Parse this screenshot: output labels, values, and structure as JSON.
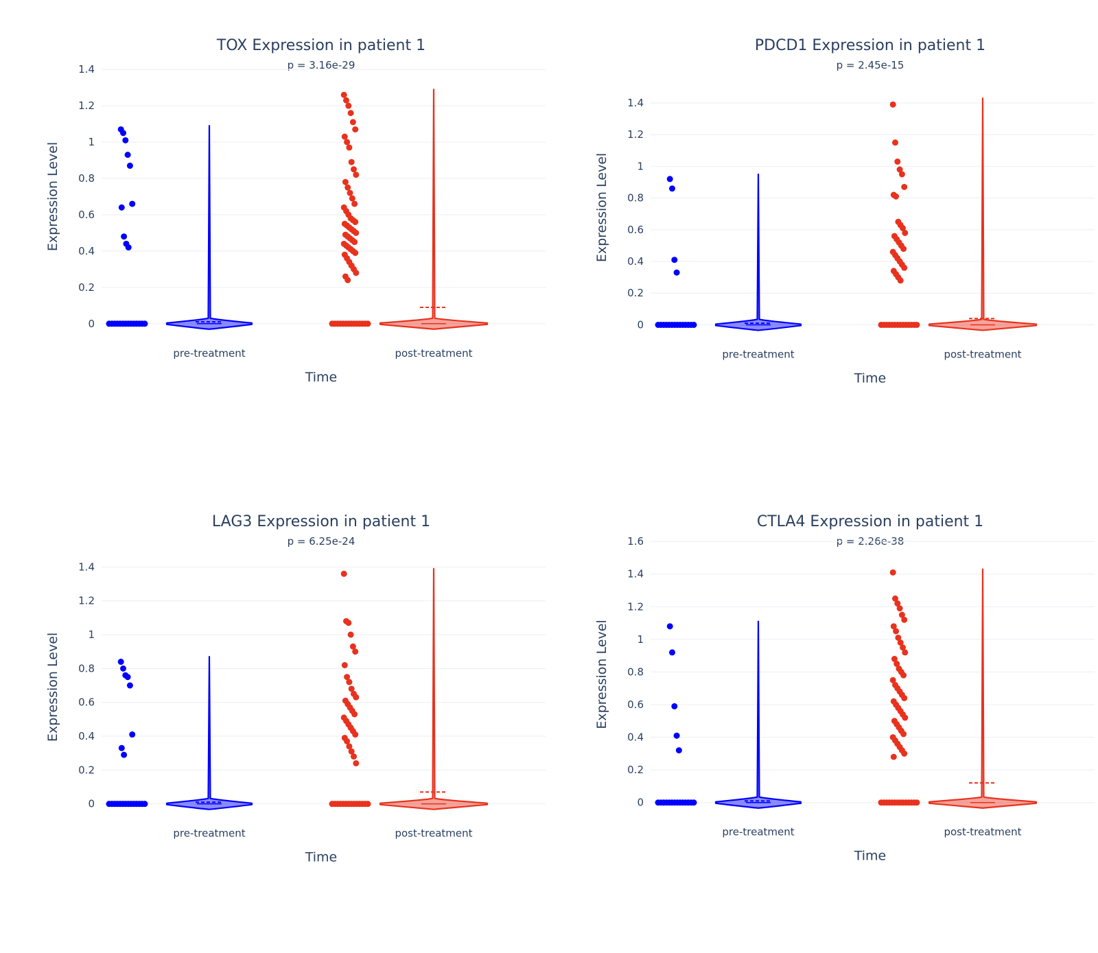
{
  "chart_data": [
    {
      "type": "violin",
      "title": "TOX Expression in patient 1",
      "subtitle": "p = 3.16e-29",
      "xlabel": "Time",
      "ylabel": "Expression Level",
      "categories": [
        "pre-treatment",
        "post-treatment"
      ],
      "ylim": [
        -0.05,
        1.45
      ],
      "yticks": [
        0,
        0.2,
        0.4,
        0.6,
        0.8,
        1,
        1.2,
        1.4
      ],
      "colors": {
        "pre-treatment": "#0000ff",
        "post-treatment": "#e8321e"
      },
      "series": [
        {
          "category": "pre-treatment",
          "max": 1.09,
          "mean": 0.01,
          "points": [
            1.07,
            1.05,
            1.01,
            0.93,
            0.87,
            0.66,
            0.64,
            0.48,
            0.44,
            0.42
          ]
        },
        {
          "category": "post-treatment",
          "max": 1.29,
          "mean": 0.09,
          "points": [
            1.26,
            1.23,
            1.2,
            1.16,
            1.11,
            1.07,
            1.03,
            1.0,
            0.97,
            0.89,
            0.85,
            0.82,
            0.78,
            0.75,
            0.72,
            0.69,
            0.66,
            0.64,
            0.62,
            0.6,
            0.58,
            0.57,
            0.56,
            0.55,
            0.54,
            0.53,
            0.52,
            0.51,
            0.5,
            0.49,
            0.48,
            0.47,
            0.46,
            0.45,
            0.44,
            0.43,
            0.42,
            0.41,
            0.4,
            0.39,
            0.38,
            0.36,
            0.34,
            0.32,
            0.3,
            0.28,
            0.26,
            0.24
          ]
        }
      ]
    },
    {
      "type": "violin",
      "title": "PDCD1 Expression in patient 1",
      "subtitle": "p = 2.45e-15",
      "xlabel": "Time",
      "ylabel": "Expression Level",
      "categories": [
        "pre-treatment",
        "post-treatment"
      ],
      "ylim": [
        -0.05,
        1.53
      ],
      "yticks": [
        0,
        0.2,
        0.4,
        0.6,
        0.8,
        1,
        1.2,
        1.4
      ],
      "colors": {
        "pre-treatment": "#0000ff",
        "post-treatment": "#e8321e"
      },
      "series": [
        {
          "category": "pre-treatment",
          "max": 0.95,
          "mean": 0.01,
          "points": [
            0.92,
            0.86,
            0.41,
            0.33
          ]
        },
        {
          "category": "post-treatment",
          "max": 1.43,
          "mean": 0.04,
          "points": [
            1.39,
            1.15,
            1.03,
            0.98,
            0.95,
            0.87,
            0.82,
            0.81,
            0.65,
            0.63,
            0.61,
            0.58,
            0.56,
            0.54,
            0.52,
            0.5,
            0.48,
            0.46,
            0.44,
            0.42,
            0.4,
            0.38,
            0.36,
            0.34,
            0.32,
            0.3,
            0.28
          ]
        }
      ]
    },
    {
      "type": "violin",
      "title": "LAG3 Expression in patient 1",
      "subtitle": "p = 6.25e-24",
      "xlabel": "Time",
      "ylabel": "Expression Level",
      "categories": [
        "pre-treatment",
        "post-treatment"
      ],
      "ylim": [
        -0.05,
        1.43
      ],
      "yticks": [
        0,
        0.2,
        0.4,
        0.6,
        0.8,
        1,
        1.2,
        1.4
      ],
      "colors": {
        "pre-treatment": "#0000ff",
        "post-treatment": "#e8321e"
      },
      "series": [
        {
          "category": "pre-treatment",
          "max": 0.87,
          "mean": 0.01,
          "points": [
            0.84,
            0.8,
            0.76,
            0.75,
            0.7,
            0.41,
            0.33,
            0.29
          ]
        },
        {
          "category": "post-treatment",
          "max": 1.39,
          "mean": 0.07,
          "points": [
            1.36,
            1.08,
            1.07,
            1.0,
            0.93,
            0.9,
            0.82,
            0.75,
            0.72,
            0.68,
            0.65,
            0.63,
            0.61,
            0.59,
            0.57,
            0.55,
            0.53,
            0.51,
            0.49,
            0.47,
            0.45,
            0.43,
            0.41,
            0.39,
            0.37,
            0.34,
            0.31,
            0.28,
            0.24
          ]
        }
      ]
    },
    {
      "type": "violin",
      "title": "CTLA4 Expression in patient 1",
      "subtitle": "p = 2.26e-38",
      "xlabel": "Time",
      "ylabel": "Expression Level",
      "categories": [
        "pre-treatment",
        "post-treatment"
      ],
      "ylim": [
        -0.06,
        1.63
      ],
      "yticks": [
        0,
        0.2,
        0.4,
        0.6,
        0.8,
        1,
        1.2,
        1.4,
        1.6
      ],
      "colors": {
        "pre-treatment": "#0000ff",
        "post-treatment": "#e8321e"
      },
      "series": [
        {
          "category": "pre-treatment",
          "max": 1.11,
          "mean": 0.01,
          "points": [
            1.08,
            0.92,
            0.59,
            0.41,
            0.32
          ]
        },
        {
          "category": "post-treatment",
          "max": 1.43,
          "mean": 0.12,
          "points": [
            1.41,
            1.25,
            1.22,
            1.19,
            1.15,
            1.12,
            1.08,
            1.05,
            1.01,
            0.98,
            0.95,
            0.92,
            0.88,
            0.85,
            0.82,
            0.8,
            0.78,
            0.75,
            0.72,
            0.7,
            0.68,
            0.66,
            0.64,
            0.62,
            0.6,
            0.58,
            0.56,
            0.54,
            0.52,
            0.5,
            0.48,
            0.46,
            0.44,
            0.42,
            0.4,
            0.38,
            0.36,
            0.34,
            0.32,
            0.3,
            0.28
          ]
        }
      ]
    }
  ]
}
